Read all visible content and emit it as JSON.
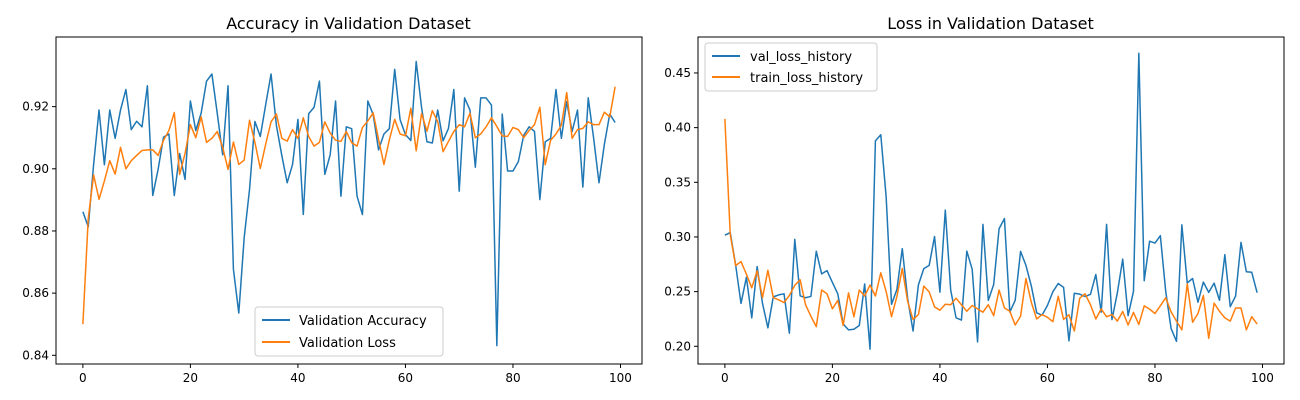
{
  "chart_data": [
    {
      "type": "line",
      "title": "Accuracy in Validation Dataset",
      "xlabel": "",
      "ylabel": "",
      "xlim": [
        -5,
        104
      ],
      "ylim": [
        0.8372,
        0.9424
      ],
      "xticks": [
        0,
        20,
        40,
        60,
        80,
        100
      ],
      "yticks": [
        0.84,
        0.86,
        0.88,
        0.9,
        0.92
      ],
      "ytick_labels": [
        "0.84",
        "0.86",
        "0.88",
        "0.90",
        "0.92"
      ],
      "legend_position": "lower-center",
      "grid": false,
      "series": [
        {
          "name": "Validation Accuracy",
          "color": "#1f77b4",
          "values": [
            0.8862,
            0.8813,
            0.9014,
            0.9189,
            0.9013,
            0.9189,
            0.9098,
            0.9189,
            0.9255,
            0.9126,
            0.9153,
            0.9135,
            0.9267,
            0.8914,
            0.8999,
            0.9102,
            0.9112,
            0.8914,
            0.9049,
            0.8966,
            0.9218,
            0.9123,
            0.9179,
            0.9282,
            0.9305,
            0.9178,
            0.9045,
            0.9267,
            0.8677,
            0.8536,
            0.8778,
            0.8934,
            0.9152,
            0.9104,
            0.9206,
            0.9305,
            0.9139,
            0.9043,
            0.8955,
            0.9014,
            0.9159,
            0.8853,
            0.9177,
            0.9198,
            0.9282,
            0.8982,
            0.9045,
            0.9218,
            0.8912,
            0.9135,
            0.9129,
            0.8912,
            0.8853,
            0.9218,
            0.9174,
            0.9061,
            0.9112,
            0.9129,
            0.932,
            0.9158,
            0.911,
            0.9091,
            0.9345,
            0.9197,
            0.9087,
            0.9083,
            0.9189,
            0.909,
            0.913,
            0.9255,
            0.8928,
            0.9228,
            0.9189,
            0.9005,
            0.9228,
            0.9228,
            0.9205,
            0.8431,
            0.9176,
            0.8993,
            0.8993,
            0.9023,
            0.9108,
            0.9135,
            0.912,
            0.8901,
            0.9087,
            0.9098,
            0.9255,
            0.9098,
            0.9216,
            0.912,
            0.9189,
            0.8941,
            0.9228,
            0.9099,
            0.8955,
            0.9079,
            0.9176,
            0.9149
          ]
        },
        {
          "name": "Validation Loss",
          "color": "#ff7f0e",
          "values": [
            0.85,
            0.8841,
            0.898,
            0.8902,
            0.8961,
            0.9026,
            0.8983,
            0.9069,
            0.9,
            0.9026,
            0.9043,
            0.9059,
            0.9061,
            0.9061,
            0.9043,
            0.9092,
            0.9123,
            0.9181,
            0.8982,
            0.9049,
            0.9142,
            0.91,
            0.9167,
            0.9085,
            0.9098,
            0.912,
            0.9069,
            0.8998,
            0.9086,
            0.9014,
            0.9028,
            0.9156,
            0.9085,
            0.9001,
            0.9079,
            0.9151,
            0.9176,
            0.9098,
            0.9089,
            0.9126,
            0.9098,
            0.9164,
            0.9104,
            0.9073,
            0.9085,
            0.9151,
            0.9115,
            0.9092,
            0.9088,
            0.912,
            0.9084,
            0.9073,
            0.9133,
            0.9154,
            0.918,
            0.9095,
            0.9014,
            0.9093,
            0.9159,
            0.9112,
            0.9106,
            0.9195,
            0.9058,
            0.9178,
            0.9121,
            0.9187,
            0.9152,
            0.9055,
            0.9088,
            0.912,
            0.9142,
            0.9135,
            0.9179,
            0.91,
            0.9112,
            0.9135,
            0.9164,
            0.9136,
            0.9106,
            0.9104,
            0.9133,
            0.9126,
            0.91,
            0.9123,
            0.9142,
            0.9198,
            0.9013,
            0.9092,
            0.9112,
            0.914,
            0.9245,
            0.9098,
            0.9126,
            0.913,
            0.9151,
            0.9142,
            0.9142,
            0.9182,
            0.9167,
            0.9264
          ]
        }
      ]
    },
    {
      "type": "line",
      "title": "Loss in Validation Dataset",
      "xlabel": "",
      "ylabel": "",
      "xlim": [
        -5,
        104
      ],
      "ylim": [
        0.1838,
        0.4829
      ],
      "xticks": [
        0,
        20,
        40,
        60,
        80,
        100
      ],
      "yticks": [
        0.2,
        0.25,
        0.3,
        0.35,
        0.4,
        0.45
      ],
      "ytick_labels": [
        "0.20",
        "0.25",
        "0.30",
        "0.35",
        "0.40",
        "0.45"
      ],
      "legend_position": "upper-left",
      "grid": false,
      "series": [
        {
          "name": "val_loss_history",
          "color": "#1f77b4",
          "values": [
            0.3016,
            0.304,
            0.2744,
            0.2392,
            0.2631,
            0.226,
            0.273,
            0.2392,
            0.2169,
            0.2452,
            0.247,
            0.248,
            0.212,
            0.2978,
            0.2462,
            0.2444,
            0.2456,
            0.2869,
            0.2662,
            0.2692,
            0.2584,
            0.248,
            0.2204,
            0.215,
            0.2156,
            0.219,
            0.257,
            0.1974,
            0.3879,
            0.3935,
            0.3364,
            0.2384,
            0.2521,
            0.2893,
            0.2435,
            0.214,
            0.2562,
            0.271,
            0.274,
            0.3004,
            0.2495,
            0.3245,
            0.2515,
            0.226,
            0.224,
            0.287,
            0.2705,
            0.204,
            0.3115,
            0.242,
            0.2565,
            0.3075,
            0.3168,
            0.2313,
            0.242,
            0.2868,
            0.274,
            0.2552,
            0.2306,
            0.2285,
            0.2374,
            0.2498,
            0.2574,
            0.2539,
            0.205,
            0.2485,
            0.2477,
            0.2455,
            0.2475,
            0.2657,
            0.2312,
            0.3115,
            0.2244,
            0.2488,
            0.2797,
            0.228,
            0.2502,
            0.468,
            0.26,
            0.2961,
            0.2944,
            0.3012,
            0.2502,
            0.2162,
            0.2045,
            0.311,
            0.258,
            0.262,
            0.2403,
            0.2587,
            0.2493,
            0.2578,
            0.2421,
            0.2838,
            0.2362,
            0.246,
            0.295,
            0.2682,
            0.2677,
            0.249
          ]
        },
        {
          "name": "train_loss_history",
          "color": "#ff7f0e",
          "values": [
            0.408,
            0.302,
            0.2738,
            0.2775,
            0.266,
            0.2535,
            0.269,
            0.2445,
            0.2695,
            0.2445,
            0.2425,
            0.24,
            0.2465,
            0.2558,
            0.2608,
            0.238,
            0.2275,
            0.218,
            0.2515,
            0.248,
            0.2342,
            0.242,
            0.2191,
            0.2488,
            0.227,
            0.2515,
            0.246,
            0.256,
            0.246,
            0.2672,
            0.25,
            0.2271,
            0.2456,
            0.2712,
            0.241,
            0.2245,
            0.229,
            0.255,
            0.2498,
            0.236,
            0.233,
            0.2385,
            0.238,
            0.244,
            0.238,
            0.232,
            0.2373,
            0.2342,
            0.2312,
            0.238,
            0.228,
            0.2515,
            0.2351,
            0.232,
            0.2195,
            0.2275,
            0.262,
            0.2402,
            0.225,
            0.229,
            0.2265,
            0.2225,
            0.2458,
            0.2245,
            0.2289,
            0.214,
            0.244,
            0.248,
            0.238,
            0.225,
            0.2342,
            0.227,
            0.229,
            0.223,
            0.2318,
            0.2195,
            0.231,
            0.22,
            0.237,
            0.234,
            0.23,
            0.237,
            0.2444,
            0.2315,
            0.223,
            0.215,
            0.2571,
            0.222,
            0.23,
            0.2465,
            0.2073,
            0.2395,
            0.232,
            0.226,
            0.223,
            0.235,
            0.235,
            0.215,
            0.2271,
            0.2203
          ]
        }
      ]
    }
  ]
}
